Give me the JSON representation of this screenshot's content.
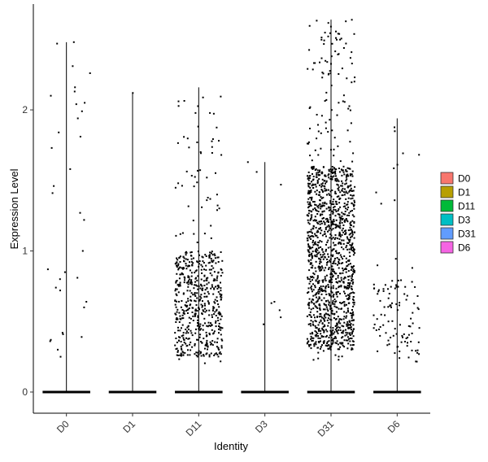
{
  "chart_data": {
    "type": "scatter",
    "subtype": "violin-jitter",
    "title": "",
    "xlabel": "Identity",
    "ylabel": "Expression Level",
    "ylim": [
      -0.15,
      2.75
    ],
    "yticks": [
      0,
      1,
      2
    ],
    "ytick_labels": [
      "0",
      "1",
      "2"
    ],
    "categories": [
      "D0",
      "D1",
      "D11",
      "D3",
      "D31",
      "D6"
    ],
    "grid": false,
    "legend": {
      "position": "right",
      "entries": [
        "D0",
        "D1",
        "D11",
        "D3",
        "D31",
        "D6"
      ]
    },
    "colors": [
      "#F8766D",
      "#B79F00",
      "#00BA38",
      "#00BFC4",
      "#619CFF",
      "#F564E3"
    ],
    "violin_max": [
      2.48,
      2.12,
      2.16,
      1.63,
      2.64,
      1.94
    ],
    "nonzero_points": [
      {
        "group": "D0",
        "values": [
          2.48,
          2.47,
          2.31,
          2.26,
          2.16,
          2.13,
          2.1,
          2.05,
          2.04,
          1.99,
          1.94,
          1.84,
          1.81,
          1.73,
          1.58,
          1.46,
          1.41,
          1.27,
          1.22,
          1.0,
          0.87,
          0.85,
          0.81,
          0.8,
          0.74,
          0.72,
          0.64,
          0.6,
          0.42,
          0.41,
          0.39,
          0.37,
          0.36,
          0.3,
          0.25
        ]
      },
      {
        "group": "D1",
        "values": [
          2.12
        ]
      },
      {
        "group": "D11",
        "approx_count": 600,
        "range": [
          0.18,
          2.16
        ],
        "dense_range": [
          0.25,
          1.0
        ]
      },
      {
        "group": "D3",
        "values": [
          1.63,
          1.56,
          1.47,
          0.64,
          0.63,
          0.58,
          0.53,
          0.48
        ]
      },
      {
        "group": "D31",
        "approx_count": 1400,
        "range": [
          0.22,
          2.64
        ],
        "dense_range": [
          0.3,
          1.6
        ]
      },
      {
        "group": "D6",
        "approx_count": 110,
        "range": [
          0.17,
          1.94
        ],
        "dense_range": [
          0.2,
          0.8
        ]
      }
    ]
  }
}
